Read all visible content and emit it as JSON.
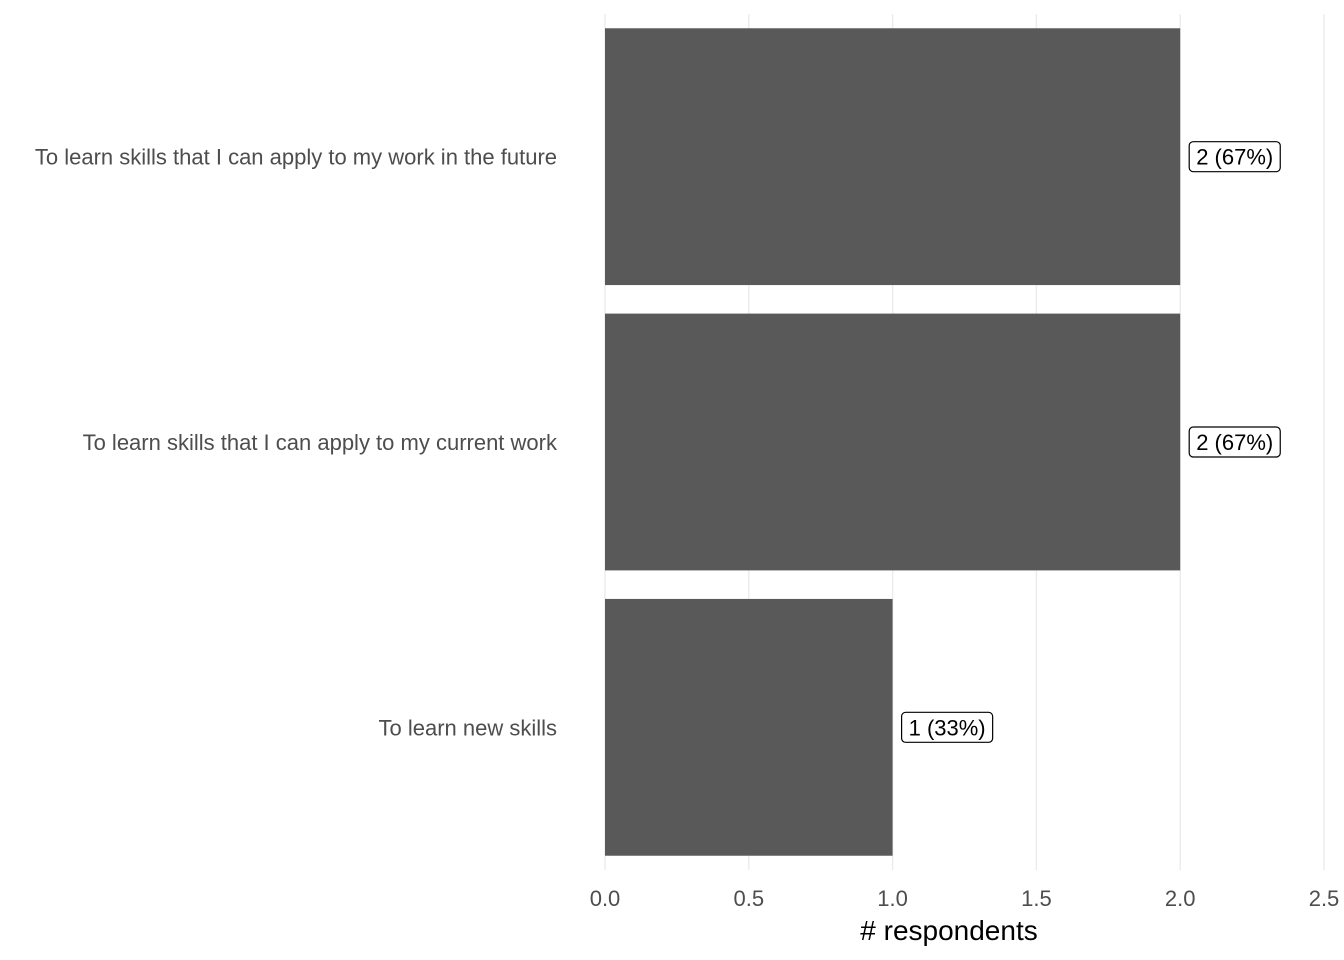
{
  "chart_data": {
    "type": "bar",
    "orientation": "horizontal",
    "categories": [
      "To learn skills that I can apply to my work in the future",
      "To learn skills that I can apply to my current work",
      "To learn new skills"
    ],
    "values": [
      2,
      2,
      1
    ],
    "data_labels": [
      "2 (67%)",
      "2 (67%)",
      "1 (33%)"
    ],
    "xlabel": "# respondents",
    "ylabel": "",
    "title": "",
    "xlim": [
      0,
      2.5
    ],
    "x_ticks": [
      "0.0",
      "0.5",
      "1.0",
      "1.5",
      "2.0",
      "2.5"
    ],
    "x_tick_values": [
      0,
      0.5,
      1.0,
      1.5,
      2.0,
      2.5
    ],
    "grid": "vertical",
    "legend": "none",
    "bar_color": "#595959"
  }
}
